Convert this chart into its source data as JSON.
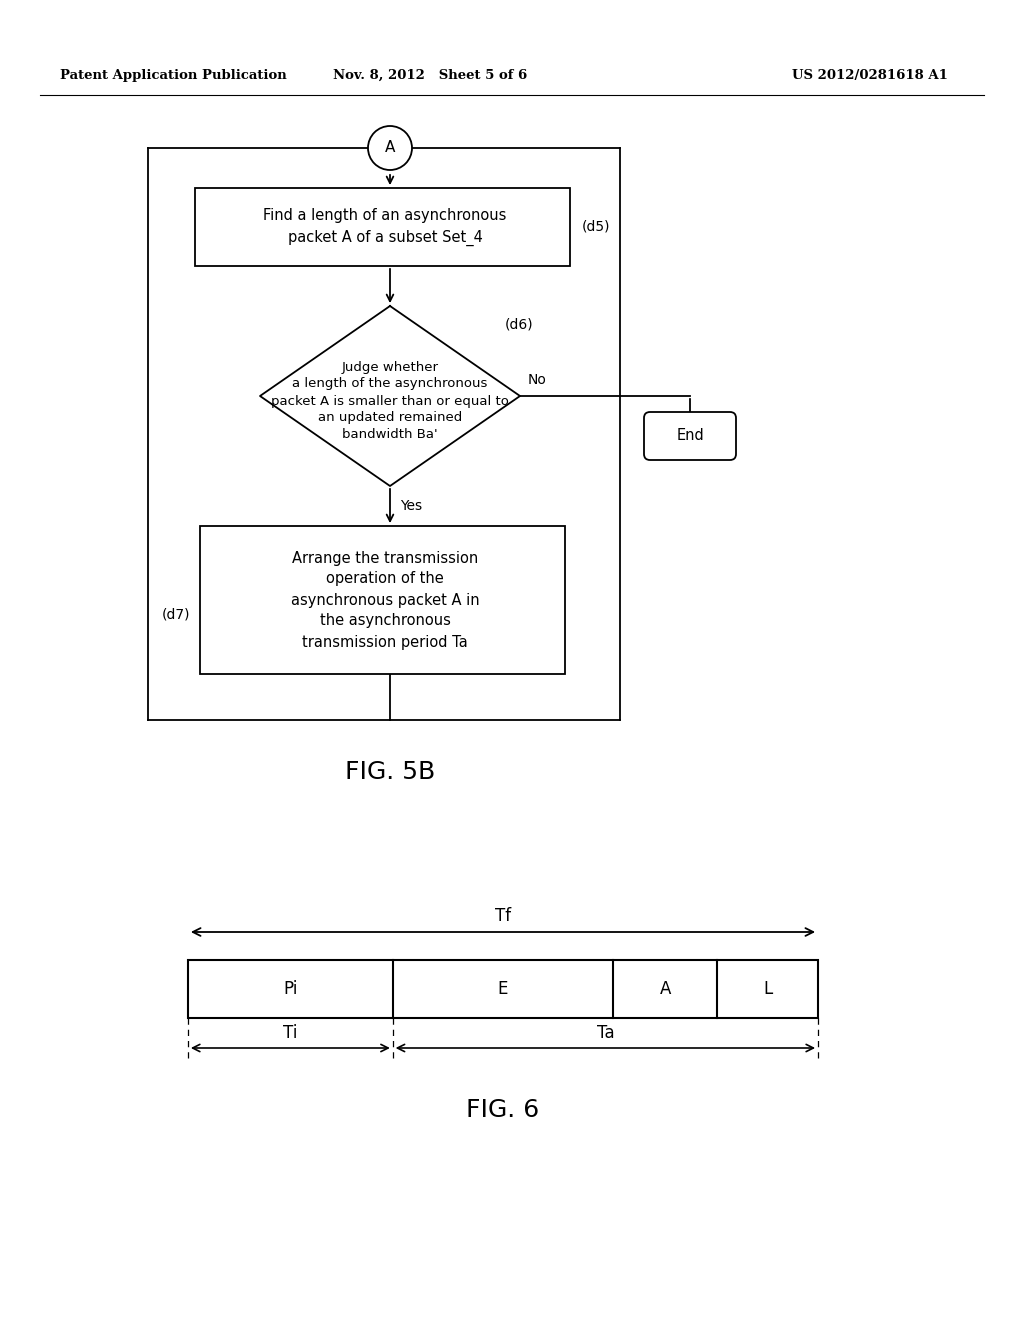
{
  "bg_color": "#ffffff",
  "header_left": "Patent Application Publication",
  "header_mid": "Nov. 8, 2012   Sheet 5 of 6",
  "header_right": "US 2012/0281618 A1",
  "fig5b_label": "FIG. 5B",
  "fig6_label": "FIG. 6",
  "connector_A_label": "A",
  "d5_label": "(d5)",
  "d6_label": "(d6)",
  "d7_label": "(d7)",
  "box_d5_text": "Find a length of an asynchronous\npacket A of a subset Set_4",
  "diamond_d6_text": "Judge whether\na length of the asynchronous\npacket A is smaller than or equal to\nan updated remained\nbandwidth Ba'",
  "box_d7_text": "Arrange the transmission\noperation of the\nasynchronous packet A in\nthe asynchronous\ntransmission period Ta",
  "no_label": "No",
  "yes_label": "Yes",
  "end_label": "End",
  "fig6_Tf": "Tf",
  "fig6_Ti": "Ti",
  "fig6_Ta": "Ta",
  "fig6_Pi": "Pi",
  "fig6_E": "E",
  "fig6_A": "A",
  "fig6_L": "L"
}
